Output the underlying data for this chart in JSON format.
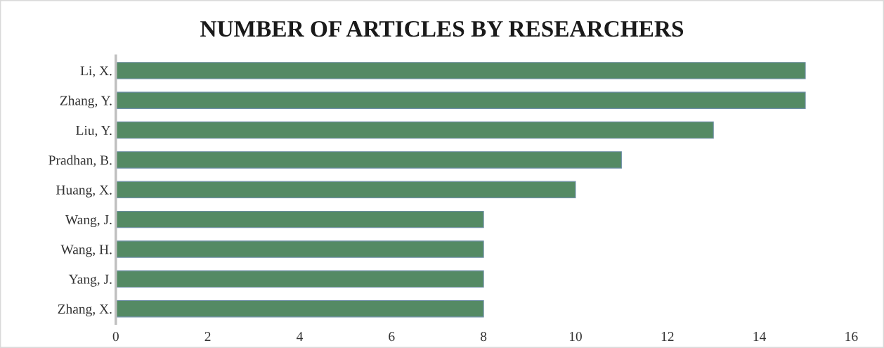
{
  "chart_data": {
    "type": "bar",
    "orientation": "horizontal",
    "title": "NUMBER OF ARTICLES BY RESEARCHERS",
    "categories": [
      "Li, X.",
      "Zhang, Y.",
      "Liu, Y.",
      "Pradhan, B.",
      "Huang, X.",
      "Wang, J.",
      "Wang, H.",
      "Yang, J.",
      "Zhang, X."
    ],
    "values": [
      15,
      15,
      13,
      11,
      10,
      8,
      8,
      8,
      8
    ],
    "color": "#548a64",
    "xlim": [
      0,
      16
    ],
    "xticks": [
      0,
      2,
      4,
      6,
      8,
      10,
      12,
      14,
      16
    ],
    "grid": false,
    "legend": false
  }
}
